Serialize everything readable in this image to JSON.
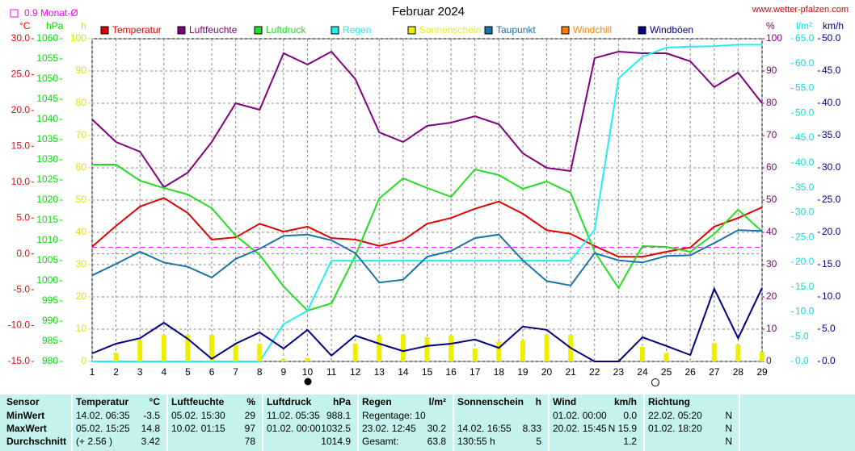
{
  "chart_data": {
    "type": "line",
    "title": "Februar 2024",
    "source": "www.wetter-pfalzen.com",
    "mean": 0.9,
    "mean_label": "0.9 Monat-Ø",
    "mean_color": "#ff00ff",
    "x": [
      1,
      2,
      3,
      4,
      5,
      6,
      7,
      8,
      9,
      10,
      11,
      12,
      13,
      14,
      15,
      16,
      17,
      18,
      19,
      20,
      21,
      22,
      23,
      24,
      25,
      26,
      27,
      28,
      29
    ],
    "xlim": [
      1,
      29
    ],
    "grid": true,
    "axes": [
      {
        "unit": "°C",
        "color": "#ff0000",
        "lim": [
          -15,
          30
        ],
        "ticks": [
          {
            "value": -15,
            "label": "-15.0"
          },
          {
            "value": -10,
            "label": "-10.0"
          },
          {
            "value": -5,
            "label": "-5.0"
          },
          {
            "value": 0,
            "label": "0.0"
          },
          {
            "value": 5,
            "label": "5.0"
          },
          {
            "value": 10,
            "label": "10.0"
          },
          {
            "value": 15,
            "label": "15.0"
          },
          {
            "value": 20,
            "label": "20.0"
          },
          {
            "value": 25,
            "label": "25.0"
          },
          {
            "value": 30,
            "label": "30.0"
          }
        ]
      },
      {
        "unit": "hPa",
        "color": "#00e000",
        "lim": [
          980,
          1060
        ],
        "ticks": [
          980,
          985,
          990,
          995,
          1000,
          1005,
          1010,
          1015,
          1020,
          1025,
          1030,
          1035,
          1040,
          1045,
          1050,
          1055,
          1060
        ]
      },
      {
        "unit": "h",
        "color": "#e0e000",
        "lim": [
          0,
          100
        ],
        "ticks": [
          0,
          10,
          20,
          30,
          40,
          50,
          60,
          70,
          80,
          90,
          100
        ]
      },
      {
        "unit": "%",
        "color": "#800080",
        "lim": [
          0,
          100
        ],
        "ticks": [
          0,
          10,
          20,
          30,
          40,
          50,
          60,
          70,
          80,
          90,
          100
        ]
      },
      {
        "unit": "l/m²",
        "color": "#00e0e0",
        "lim": [
          0,
          65
        ],
        "ticks": [
          {
            "value": 0,
            "label": "0.0"
          },
          {
            "value": 5,
            "label": "5.0"
          },
          {
            "value": 10,
            "label": "10.0"
          },
          {
            "value": 15,
            "label": "15.0"
          },
          {
            "value": 20,
            "label": "20.0"
          },
          {
            "value": 25,
            "label": "25.0"
          },
          {
            "value": 30,
            "label": "30.0"
          },
          {
            "value": 35,
            "label": "35.0"
          },
          {
            "value": 40,
            "label": "40.0"
          },
          {
            "value": 45,
            "label": "45.0"
          },
          {
            "value": 50,
            "label": "50.0"
          },
          {
            "value": 55,
            "label": "55.0"
          },
          {
            "value": 60,
            "label": "60.0"
          },
          {
            "value": 65,
            "label": "65.0"
          }
        ]
      },
      {
        "unit": "km/h",
        "color": "#000080",
        "lim": [
          0,
          50
        ],
        "ticks": [
          {
            "value": 0,
            "label": "0.0"
          },
          {
            "value": 5,
            "label": "5.0"
          },
          {
            "value": 10,
            "label": "10.0"
          },
          {
            "value": 15,
            "label": "15.0"
          },
          {
            "value": 20,
            "label": "20.0"
          },
          {
            "value": 25,
            "label": "25.0"
          },
          {
            "value": 30,
            "label": "30.0"
          },
          {
            "value": 35,
            "label": "35.0"
          },
          {
            "value": 40,
            "label": "40.0"
          },
          {
            "value": 45,
            "label": "45.0"
          },
          {
            "value": 50,
            "label": "50.0"
          }
        ]
      }
    ],
    "series": [
      {
        "name": "Temperatur",
        "color": "#e00000",
        "axis": 0,
        "type": "line",
        "values": [
          1.0,
          3.9,
          6.6,
          7.8,
          5.7,
          2.0,
          2.3,
          4.2,
          3.1,
          3.8,
          2.2,
          2.0,
          1.1,
          1.9,
          4.2,
          5.0,
          6.3,
          7.3,
          5.6,
          3.3,
          2.8,
          1.1,
          -0.4,
          -0.4,
          0.3,
          0.9,
          3.8,
          5.0,
          6.5
        ]
      },
      {
        "name": "Luftfeuchte",
        "color": "#800080",
        "axis": 3,
        "type": "line",
        "values": [
          75,
          68,
          65,
          54,
          58.5,
          68,
          80,
          78,
          95.5,
          92,
          96,
          87.5,
          71,
          68,
          73,
          74,
          76,
          73.5,
          64.5,
          60,
          59,
          94,
          96,
          95.5,
          95.5,
          93,
          85,
          89.5,
          80
        ]
      },
      {
        "name": "Luftdruck",
        "color": "#22dd22",
        "axis": 1,
        "type": "line",
        "values": [
          1028.8,
          1028.8,
          1024.8,
          1023,
          1021.4,
          1018,
          1011.2,
          1006.4,
          998.6,
          992.6,
          994.4,
          1006.2,
          1020.4,
          1025.4,
          1023,
          1020.8,
          1027.6,
          1026.2,
          1022.8,
          1024.6,
          1021.8,
          1007.2,
          998.2,
          1008.6,
          1008.4,
          1007.2,
          1011.6,
          1017.6,
          1012.2
        ]
      },
      {
        "name": "Regen",
        "color": "#22eeee",
        "axis": 4,
        "type": "line",
        "values": [
          0,
          0,
          0,
          0,
          0,
          0,
          0,
          0,
          7.5,
          10.2,
          20.3,
          20.3,
          20.3,
          20.3,
          20.3,
          20.3,
          20.3,
          20.3,
          20.3,
          20.3,
          20.3,
          26.5,
          57,
          61.4,
          63.2,
          63.4,
          63.5,
          63.8,
          63.8
        ]
      },
      {
        "name": "Sonnenschein",
        "color": "#eeee00",
        "axis": 2,
        "type": "bar",
        "values": [
          0,
          2.7,
          6.5,
          8.2,
          8.2,
          8.2,
          5,
          5.5,
          0.7,
          1,
          0,
          5.5,
          8.2,
          8.33,
          7.5,
          8,
          4,
          6.2,
          6.5,
          8.3,
          8.2,
          0,
          0,
          4.5,
          2.7,
          0.2,
          5.7,
          5.2,
          3
        ]
      },
      {
        "name": "Taupunkt",
        "color": "#1874a8",
        "axis": 0,
        "type": "line",
        "values": [
          -3.0,
          -1.4,
          0.3,
          -1.2,
          -1.8,
          -3.3,
          -0.7,
          0.7,
          2.5,
          2.7,
          1.9,
          0.1,
          -4.0,
          -3.6,
          -0.4,
          0.4,
          2.2,
          2.7,
          -0.9,
          -3.8,
          -4.4,
          0.1,
          -0.9,
          -1.2,
          -0.3,
          -0.2,
          1.5,
          3.3,
          3.2
        ]
      },
      {
        "name": "Windchill",
        "color": "#ff8000",
        "axis": 0,
        "type": "line",
        "values": [
          null,
          null,
          null,
          null,
          null,
          null,
          null,
          null,
          null,
          null,
          null,
          null,
          null,
          null,
          null,
          null,
          null,
          null,
          null,
          null,
          null,
          null,
          null,
          null,
          null,
          null,
          null,
          null,
          null
        ]
      },
      {
        "name": "Windböen",
        "color": "#000080",
        "axis": 5,
        "type": "line",
        "values": [
          1.25,
          2.75,
          3.6,
          6.0,
          3.5,
          0.4,
          2.75,
          4.5,
          2.0,
          4.9,
          0.9,
          4.0,
          2.75,
          1.6,
          2.4,
          2.75,
          3.4,
          2.1,
          5.4,
          4.9,
          2.1,
          0,
          0,
          3.75,
          2.4,
          1.0,
          11.25,
          3.6,
          11.4
        ]
      }
    ]
  },
  "table": {
    "header": [
      "Sensor",
      "Temperatur",
      "°C",
      "Luftfeuchte",
      "%",
      "Luftdruck",
      "hPa",
      "Regen",
      "l/m²",
      "Sonnenschein",
      "h",
      "Wind",
      "km/h",
      "Richtung",
      null
    ],
    "rows": [
      [
        "MinWert",
        "14.02. 06:35",
        "-3.5",
        "05.02. 15:30",
        "29",
        "11.02. 05:35",
        "988.1",
        "Regentage: 10",
        null,
        null,
        null,
        "01.02. 00:00",
        "0.0",
        "22.02. 05:20",
        "N"
      ],
      [
        "MaxWert",
        "05.02. 15:25",
        "14.8",
        "10.02. 01:15",
        "97",
        "01.02. 00:00",
        "1032.5",
        "23.02. 12:45",
        "30.2",
        "14.02. 16:55",
        "8.33",
        "20.02. 15:45",
        "N 15.9",
        "01.02. 18:20",
        "N"
      ],
      [
        "Durchschnitt",
        "(+ 2.56 )",
        "3.42",
        null,
        "78",
        null,
        "1014.9",
        "Gesamt:",
        "63.8",
        "130:55 h",
        "5",
        null,
        "1.2",
        null,
        "N"
      ]
    ]
  }
}
